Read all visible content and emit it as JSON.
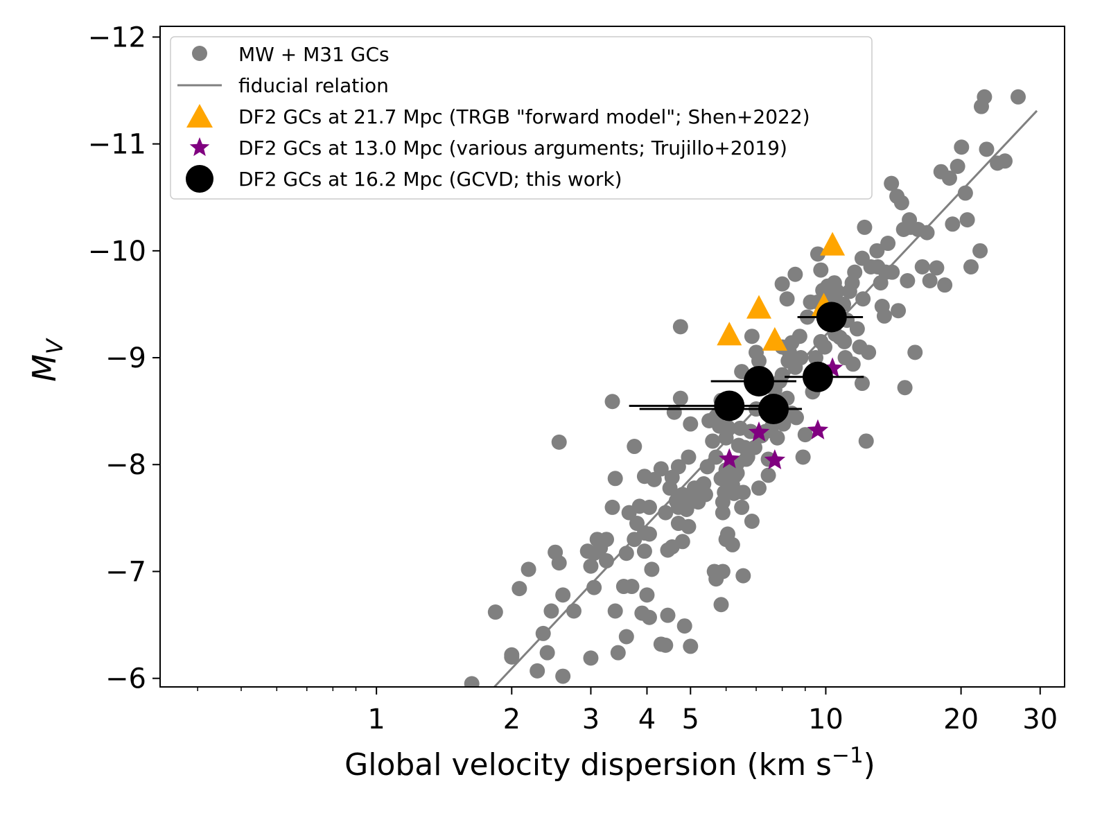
{
  "chart_data": {
    "type": "scatter",
    "xlabel": "Global velocity dispersion (km s",
    "xlabel_sup": "−1",
    "xlabel_close": ")",
    "ylabel": "M",
    "ylabel_sub": "V",
    "xscale": "log",
    "xlim": [
      0.33,
      34
    ],
    "ylim": [
      -5.92,
      -12.1
    ],
    "y_inverted": true,
    "x_ticks": [
      1,
      2,
      3,
      4,
      5,
      10,
      20,
      30
    ],
    "x_tick_labels": [
      "1",
      "2",
      "3",
      "4",
      "5",
      "10",
      "20",
      "30"
    ],
    "y_ticks": [
      -6,
      -7,
      -8,
      -9,
      -10,
      -11,
      -12
    ],
    "y_tick_labels": [
      "−6",
      "−7",
      "−8",
      "−9",
      "−10",
      "−11",
      "−12"
    ],
    "legend_position": "top-left",
    "colors": {
      "mw_gc": "#808080",
      "fiducial": "#808080",
      "trgb": "#FFA500",
      "trujillo": "#800080",
      "gcvd": "#000000"
    },
    "series": [
      {
        "name": "MW + M31 GCs",
        "marker": "circle",
        "points": [
          [
            1.63,
            -5.95
          ],
          [
            1.84,
            -6.62
          ],
          [
            2.0,
            -6.2
          ],
          [
            2.0,
            -6.22
          ],
          [
            2.08,
            -6.84
          ],
          [
            2.18,
            -7.02
          ],
          [
            2.28,
            -6.07
          ],
          [
            2.35,
            -6.42
          ],
          [
            2.4,
            -6.24
          ],
          [
            2.45,
            -6.63
          ],
          [
            2.5,
            -7.18
          ],
          [
            2.6,
            -6.02
          ],
          [
            2.55,
            -7.08
          ],
          [
            2.6,
            -6.78
          ],
          [
            2.75,
            -6.63
          ],
          [
            2.55,
            -8.21
          ],
          [
            2.95,
            -7.19
          ],
          [
            3.0,
            -7.05
          ],
          [
            3.05,
            -7.17
          ],
          [
            3.1,
            -7.3
          ],
          [
            3.15,
            -7.22
          ],
          [
            3.0,
            -6.19
          ],
          [
            3.05,
            -6.85
          ],
          [
            3.25,
            -7.1
          ],
          [
            3.25,
            -7.3
          ],
          [
            3.35,
            -7.6
          ],
          [
            3.4,
            -7.87
          ],
          [
            3.35,
            -8.59
          ],
          [
            3.45,
            -6.24
          ],
          [
            3.4,
            -6.63
          ],
          [
            3.55,
            -6.86
          ],
          [
            3.7,
            -6.86
          ],
          [
            3.6,
            -7.17
          ],
          [
            3.65,
            -7.55
          ],
          [
            3.75,
            -7.3
          ],
          [
            3.8,
            -7.45
          ],
          [
            3.85,
            -7.61
          ],
          [
            3.95,
            -7.36
          ],
          [
            3.75,
            -8.17
          ],
          [
            3.95,
            -7.89
          ],
          [
            3.95,
            -7.19
          ],
          [
            4.05,
            -7.35
          ],
          [
            4.1,
            -7.02
          ],
          [
            4.05,
            -7.6
          ],
          [
            4.15,
            -7.86
          ],
          [
            4.3,
            -7.96
          ],
          [
            3.6,
            -6.39
          ],
          [
            3.9,
            -6.61
          ],
          [
            4.05,
            -6.57
          ],
          [
            4.0,
            -6.78
          ],
          [
            4.3,
            -6.32
          ],
          [
            4.4,
            -6.31
          ],
          [
            4.45,
            -6.59
          ],
          [
            4.4,
            -7.55
          ],
          [
            4.45,
            -7.2
          ],
          [
            4.55,
            -7.23
          ],
          [
            4.5,
            -7.78
          ],
          [
            4.55,
            -7.88
          ],
          [
            4.6,
            -8.49
          ],
          [
            4.65,
            -7.66
          ],
          [
            4.7,
            -7.45
          ],
          [
            4.7,
            -7.6
          ],
          [
            4.7,
            -7.98
          ],
          [
            4.75,
            -8.62
          ],
          [
            4.8,
            -7.72
          ],
          [
            4.85,
            -7.7
          ],
          [
            4.8,
            -7.28
          ],
          [
            4.9,
            -7.58
          ],
          [
            4.95,
            -7.42
          ],
          [
            4.95,
            -8.07
          ],
          [
            4.85,
            -6.49
          ],
          [
            5.0,
            -6.3
          ],
          [
            5.0,
            -8.38
          ],
          [
            5.1,
            -7.78
          ],
          [
            5.2,
            -7.65
          ],
          [
            5.35,
            -7.82
          ],
          [
            5.4,
            -7.72
          ],
          [
            5.45,
            -7.98
          ],
          [
            5.5,
            -8.41
          ],
          [
            5.6,
            -8.22
          ],
          [
            5.7,
            -8.45
          ],
          [
            5.7,
            -8.07
          ],
          [
            5.8,
            -8.36
          ],
          [
            5.85,
            -7.87
          ],
          [
            5.9,
            -7.65
          ],
          [
            5.95,
            -7.74
          ],
          [
            6.0,
            -7.95
          ],
          [
            6.0,
            -8.25
          ],
          [
            6.0,
            -8.55
          ],
          [
            6.05,
            -8.35
          ],
          [
            6.1,
            -7.84
          ],
          [
            6.2,
            -7.81
          ],
          [
            6.25,
            -7.73
          ],
          [
            6.3,
            -7.9
          ],
          [
            6.35,
            -8.01
          ],
          [
            6.4,
            -8.18
          ],
          [
            6.45,
            -8.34
          ],
          [
            6.5,
            -7.6
          ],
          [
            6.55,
            -7.74
          ],
          [
            6.6,
            -8.16
          ],
          [
            6.7,
            -8.07
          ],
          [
            6.8,
            -8.31
          ],
          [
            6.85,
            -7.47
          ],
          [
            6.95,
            -8.16
          ],
          [
            7.0,
            -8.52
          ],
          [
            7.1,
            -7.78
          ],
          [
            7.2,
            -8.27
          ],
          [
            7.35,
            -8.31
          ],
          [
            7.45,
            -7.9
          ],
          [
            7.5,
            -8.5
          ],
          [
            7.6,
            -8.36
          ],
          [
            7.7,
            -8.7
          ],
          [
            7.75,
            -8.55
          ],
          [
            7.8,
            -8.5
          ],
          [
            7.9,
            -8.78
          ],
          [
            8.0,
            -8.84
          ],
          [
            8.05,
            -8.38
          ],
          [
            8.2,
            -8.62
          ],
          [
            8.25,
            -8.97
          ],
          [
            8.3,
            -9.05
          ],
          [
            8.4,
            -9.14
          ],
          [
            8.55,
            -8.91
          ],
          [
            8.6,
            -8.44
          ],
          [
            8.75,
            -9.2
          ],
          [
            8.8,
            -9.0
          ],
          [
            8.9,
            -8.07
          ],
          [
            9.0,
            -8.28
          ],
          [
            9.1,
            -9.38
          ],
          [
            9.25,
            -9.52
          ],
          [
            9.35,
            -8.68
          ],
          [
            9.5,
            -9.0
          ],
          [
            9.6,
            -9.52
          ],
          [
            9.75,
            -9.15
          ],
          [
            9.85,
            -9.63
          ],
          [
            9.95,
            -9.1
          ],
          [
            10.05,
            -9.35
          ],
          [
            10.15,
            -9.6
          ],
          [
            10.25,
            -9.56
          ],
          [
            10.35,
            -9.3
          ],
          [
            10.45,
            -9.7
          ],
          [
            10.6,
            -9.62
          ],
          [
            10.75,
            -9.19
          ],
          [
            10.95,
            -9.5
          ],
          [
            11.05,
            -9.0
          ],
          [
            11.15,
            -9.35
          ],
          [
            11.3,
            -9.62
          ],
          [
            11.45,
            -9.7
          ],
          [
            11.6,
            -9.8
          ],
          [
            11.75,
            -9.27
          ],
          [
            11.9,
            -9.1
          ],
          [
            12.05,
            -9.93
          ],
          [
            12.2,
            -10.22
          ],
          [
            12.1,
            -9.55
          ],
          [
            12.3,
            -8.22
          ],
          [
            12.45,
            -9.05
          ],
          [
            12.6,
            -9.85
          ],
          [
            13.0,
            -10.0
          ],
          [
            13.05,
            -9.85
          ],
          [
            13.25,
            -9.7
          ],
          [
            13.35,
            -9.48
          ],
          [
            13.5,
            -9.39
          ],
          [
            13.6,
            -9.8
          ],
          [
            13.75,
            -10.07
          ],
          [
            14.0,
            -10.63
          ],
          [
            14.05,
            -9.8
          ],
          [
            14.4,
            -10.51
          ],
          [
            14.5,
            -9.44
          ],
          [
            14.75,
            -10.45
          ],
          [
            14.9,
            -10.2
          ],
          [
            15.2,
            -9.72
          ],
          [
            15.35,
            -10.29
          ],
          [
            15.45,
            -10.22
          ],
          [
            15.8,
            -9.05
          ],
          [
            16.05,
            -10.2
          ],
          [
            16.4,
            -9.85
          ],
          [
            16.8,
            -10.17
          ],
          [
            17.05,
            -9.72
          ],
          [
            17.65,
            -9.84
          ],
          [
            18.05,
            -10.74
          ],
          [
            18.4,
            -9.68
          ],
          [
            18.85,
            -10.68
          ],
          [
            19.15,
            -10.25
          ],
          [
            19.65,
            -10.79
          ],
          [
            20.05,
            -10.97
          ],
          [
            20.45,
            -10.54
          ],
          [
            20.65,
            -10.29
          ],
          [
            21.05,
            -9.85
          ],
          [
            22.05,
            -10.0
          ],
          [
            22.2,
            -11.35
          ],
          [
            22.55,
            -11.44
          ],
          [
            22.8,
            -10.95
          ],
          [
            24.1,
            -10.82
          ],
          [
            25.05,
            -10.84
          ],
          [
            26.8,
            -11.44
          ],
          [
            15.0,
            -8.72
          ],
          [
            8.0,
            -9.1
          ],
          [
            8.0,
            -9.69
          ],
          [
            8.55,
            -9.78
          ],
          [
            5.9,
            -7.0
          ],
          [
            5.65,
            -7.0
          ],
          [
            5.7,
            -6.93
          ],
          [
            5.85,
            -6.69
          ],
          [
            6.0,
            -7.3
          ],
          [
            6.2,
            -7.25
          ],
          [
            6.05,
            -7.35
          ],
          [
            6.55,
            -6.96
          ],
          [
            5.9,
            -7.55
          ],
          [
            5.3,
            -7.8
          ],
          [
            5.0,
            -7.65
          ],
          [
            6.65,
            -8.05
          ],
          [
            6.85,
            -9.2
          ],
          [
            7.0,
            -9.05
          ],
          [
            7.1,
            -8.97
          ],
          [
            4.75,
            -9.29
          ],
          [
            8.2,
            -9.55
          ],
          [
            9.6,
            -9.97
          ],
          [
            9.75,
            -9.82
          ],
          [
            10.0,
            -9.47
          ],
          [
            10.1,
            -9.67
          ],
          [
            10.5,
            -9.22
          ],
          [
            11.0,
            -9.15
          ],
          [
            11.5,
            -8.94
          ],
          [
            12.05,
            -8.76
          ],
          [
            7.45,
            -8.05
          ],
          [
            7.8,
            -8.25
          ],
          [
            6.35,
            -7.92
          ],
          [
            5.85,
            -8.6
          ],
          [
            6.5,
            -8.87
          ],
          [
            7.3,
            -8.73
          ],
          [
            8.4,
            -8.48
          ]
        ]
      },
      {
        "name": "fiducial relation",
        "marker": "line",
        "points": [
          [
            1.83,
            -5.92
          ],
          [
            29.5,
            -11.31
          ]
        ]
      },
      {
        "name": "DF2 GCs at 21.7 Mpc (TRGB \"forward model\"; Shen+2022)",
        "marker": "triangle",
        "points": [
          [
            6.1,
            -9.2
          ],
          [
            7.1,
            -9.45
          ],
          [
            7.7,
            -9.15
          ],
          [
            9.9,
            -9.47
          ],
          [
            10.35,
            -10.04
          ]
        ]
      },
      {
        "name": "DF2 GCs at 13.0 Mpc (various arguments; Trujillo+2019)",
        "marker": "star",
        "points": [
          [
            6.1,
            -8.05
          ],
          [
            7.1,
            -8.3
          ],
          [
            7.7,
            -8.04
          ],
          [
            9.6,
            -8.32
          ],
          [
            10.35,
            -8.9
          ]
        ]
      },
      {
        "name": "DF2 GCs at 16.2 Mpc (GCVD; this work)",
        "marker": "circle-large",
        "points": [
          [
            6.1,
            -8.55
          ],
          [
            7.1,
            -8.78
          ],
          [
            7.65,
            -8.52
          ],
          [
            9.6,
            -8.82
          ],
          [
            10.3,
            -9.38
          ]
        ],
        "xerr_low": [
          2.45,
          1.55,
          3.8,
          1.5,
          1.65
        ],
        "xerr_high": [
          1.5,
          1.5,
          1.2,
          2.55,
          1.8
        ]
      }
    ]
  }
}
